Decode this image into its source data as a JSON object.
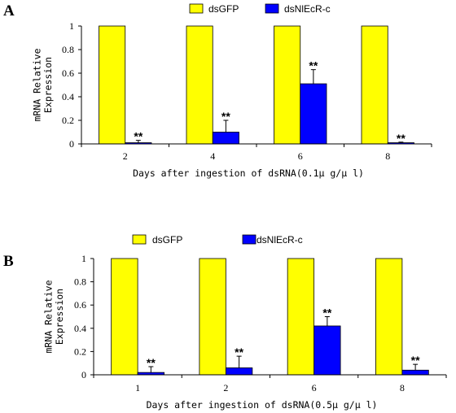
{
  "chart_data": [
    {
      "panel_label": "A",
      "type": "bar",
      "categories": [
        "2",
        "4",
        "6",
        "8"
      ],
      "series": [
        {
          "name": "dsGFP",
          "color": "#FFFF00",
          "values": [
            1,
            1,
            1,
            1
          ],
          "errors": [
            0,
            0,
            0,
            0
          ],
          "annotations": [
            "",
            "",
            "",
            ""
          ]
        },
        {
          "name": "dsNlEcR-c",
          "color": "#0000FF",
          "values": [
            0.01,
            0.1,
            0.51,
            0.01
          ],
          "errors": [
            0.02,
            0.1,
            0.12,
            0.005
          ],
          "annotations": [
            "**",
            "**",
            "**",
            "**"
          ]
        }
      ],
      "xlabel": "Days after ingestion of dsRNA(0.1μ g/μ l)",
      "ylabel": "mRNA Relative Expression",
      "ylim": [
        0,
        1
      ],
      "yticks": [
        "0",
        "0.2",
        "0.4",
        "0.6",
        "0.8",
        "1"
      ],
      "grid": false,
      "legend_position": "top"
    },
    {
      "panel_label": "B",
      "type": "bar",
      "categories": [
        "1",
        "2",
        "6",
        "8"
      ],
      "series": [
        {
          "name": "dsGFP",
          "color": "#FFFF00",
          "values": [
            1,
            1,
            1,
            1
          ],
          "errors": [
            0,
            0,
            0,
            0
          ],
          "annotations": [
            "",
            "",
            "",
            ""
          ]
        },
        {
          "name": "dsNlEcR-c",
          "color": "#0000FF",
          "values": [
            0.02,
            0.06,
            0.42,
            0.04
          ],
          "errors": [
            0.05,
            0.1,
            0.08,
            0.05
          ],
          "annotations": [
            "**",
            "**",
            "**",
            "**"
          ]
        }
      ],
      "xlabel": "Days after ingestion of dsRNA(0.5μ g/μ l)",
      "ylabel": "mRNA Relative Expression",
      "ylim": [
        0,
        1
      ],
      "yticks": [
        "0",
        "0.2",
        "0.4",
        "0.6",
        "0.8",
        "1"
      ],
      "grid": false,
      "legend_position": "top"
    }
  ]
}
